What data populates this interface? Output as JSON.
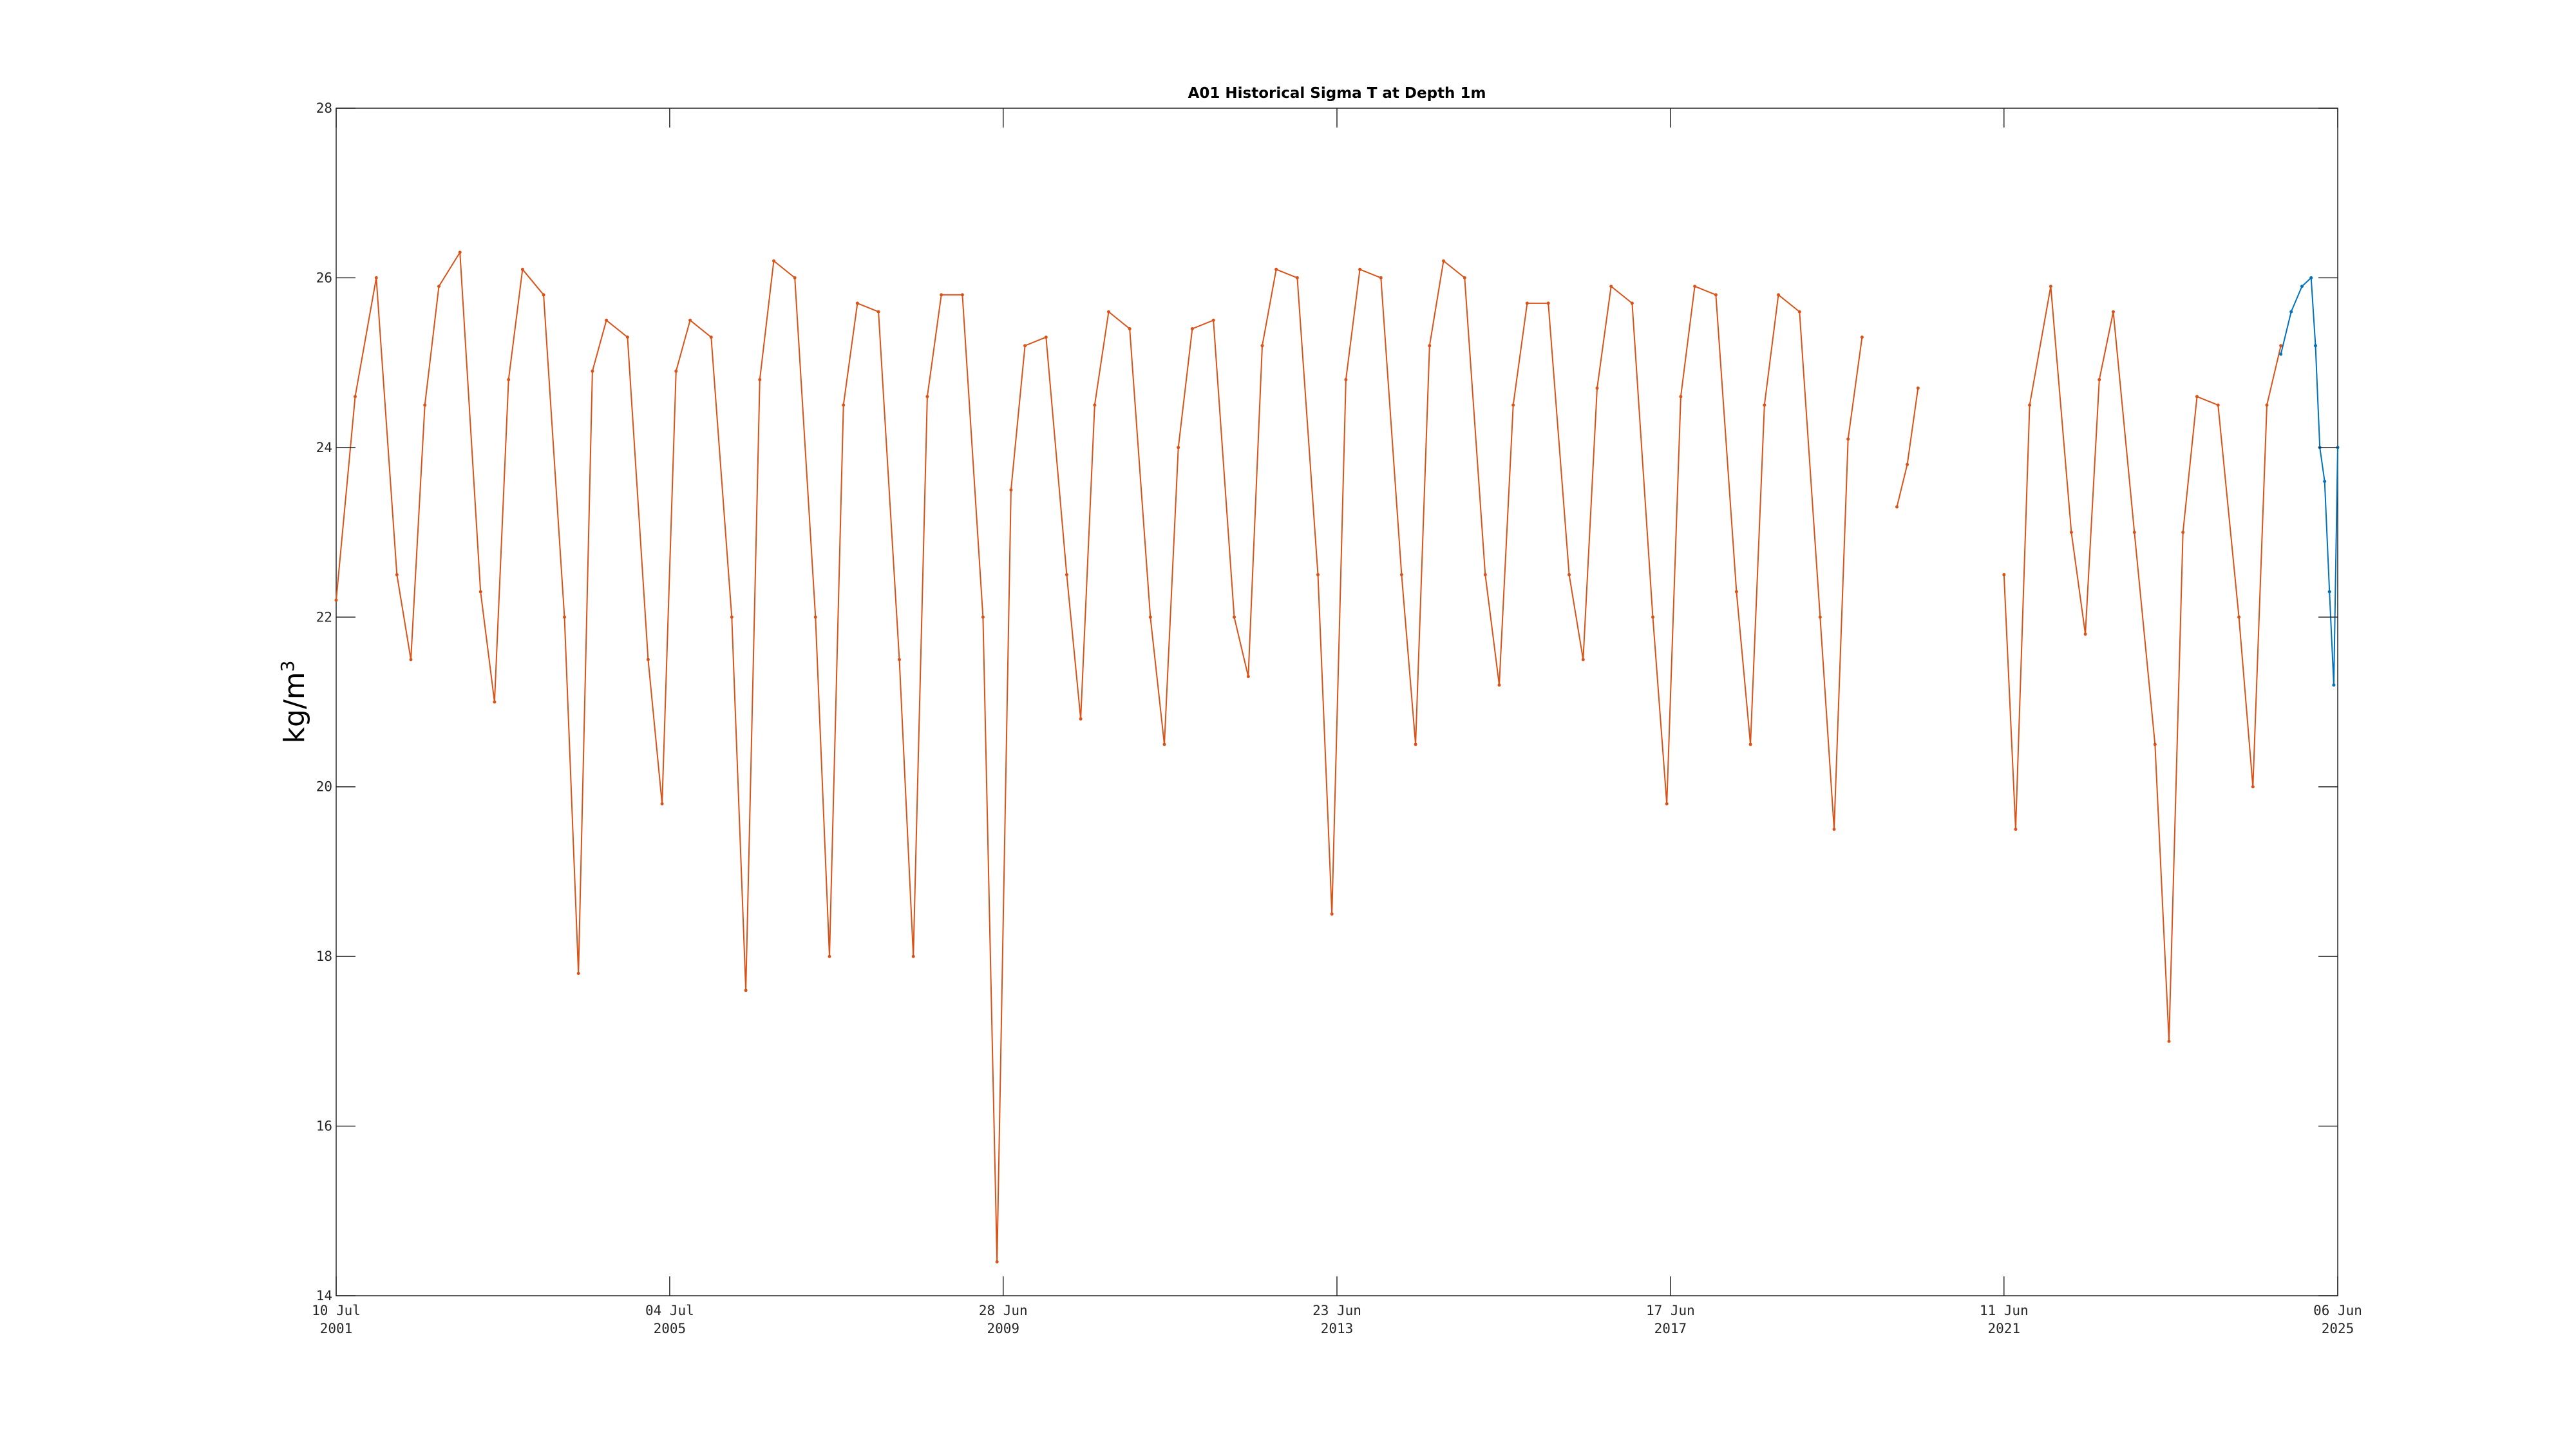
{
  "chart_data": {
    "type": "line",
    "title": "A01 Historical Sigma T at Depth 1m",
    "xlabel": "",
    "ylabel": "kg/m",
    "ylabel_superscript": "3",
    "xlim": [
      "2001-07-10",
      "2025-06-06"
    ],
    "ylim": [
      14,
      28
    ],
    "yticks": [
      14,
      16,
      18,
      20,
      22,
      24,
      26,
      28
    ],
    "xticks": [
      {
        "date": "2001-07-10",
        "line1": "10 Jul",
        "line2": "2001"
      },
      {
        "date": "2005-07-04",
        "line1": "04 Jul",
        "line2": "2005"
      },
      {
        "date": "2009-06-28",
        "line1": "28 Jun",
        "line2": "2009"
      },
      {
        "date": "2013-06-23",
        "line1": "23 Jun",
        "line2": "2013"
      },
      {
        "date": "2017-06-17",
        "line1": "17 Jun",
        "line2": "2017"
      },
      {
        "date": "2021-06-11",
        "line1": "11 Jun",
        "line2": "2021"
      },
      {
        "date": "2025-06-06",
        "line1": "06 Jun",
        "line2": "2025"
      }
    ],
    "grid": false,
    "colors": {
      "historical": "#d95319",
      "recent": "#0072bd",
      "axes": "#262626"
    },
    "series": [
      {
        "color": "#d95319",
        "segments": [
          {
            "x": [
              "2001-07-10",
              "2001-10-01",
              "2002-01-01",
              "2002-04-01",
              "2002-06-01",
              "2002-08-01",
              "2002-10-01",
              "2003-01-01",
              "2003-04-01",
              "2003-06-01",
              "2003-08-01",
              "2003-10-01",
              "2004-01-01",
              "2004-04-01",
              "2004-06-01",
              "2004-08-01",
              "2004-10-01",
              "2005-01-01",
              "2005-04-01",
              "2005-06-01",
              "2005-08-01",
              "2005-10-01",
              "2006-01-01",
              "2006-04-01",
              "2006-06-01",
              "2006-08-01",
              "2006-10-01",
              "2007-01-01",
              "2007-04-01",
              "2007-06-01",
              "2007-08-01",
              "2007-10-01",
              "2008-01-01",
              "2008-04-01",
              "2008-06-01",
              "2008-08-01",
              "2008-10-01",
              "2009-01-01",
              "2009-04-01",
              "2009-06-01",
              "2009-08-01",
              "2009-10-01",
              "2010-01-01",
              "2010-04-01",
              "2010-06-01",
              "2010-08-01",
              "2010-10-01",
              "2011-01-01",
              "2011-04-01",
              "2011-06-01",
              "2011-08-01",
              "2011-10-01",
              "2012-01-01",
              "2012-04-01",
              "2012-06-01",
              "2012-08-01",
              "2012-10-01",
              "2013-01-01",
              "2013-04-01",
              "2013-06-01",
              "2013-08-01",
              "2013-10-01",
              "2014-01-01",
              "2014-04-01",
              "2014-06-01",
              "2014-08-01",
              "2014-10-01",
              "2015-01-01",
              "2015-04-01",
              "2015-06-01",
              "2015-08-01",
              "2015-10-01",
              "2016-01-01",
              "2016-04-01",
              "2016-06-01",
              "2016-08-01",
              "2016-10-01",
              "2017-01-01",
              "2017-04-01",
              "2017-06-01",
              "2017-08-01",
              "2017-10-01",
              "2018-01-01",
              "2018-04-01",
              "2018-06-01",
              "2018-08-01",
              "2018-10-01",
              "2019-01-01",
              "2019-04-01",
              "2019-06-01",
              "2019-08-01",
              "2019-10-01"
            ],
            "y": [
              22.2,
              24.6,
              26.0,
              22.5,
              21.5,
              24.5,
              25.9,
              26.3,
              22.3,
              21.0,
              24.8,
              26.1,
              25.8,
              22.0,
              17.8,
              24.9,
              25.5,
              25.3,
              21.5,
              19.8,
              24.9,
              25.5,
              25.3,
              22.0,
              17.6,
              24.8,
              26.2,
              26.0,
              22.0,
              18.0,
              24.5,
              25.7,
              25.6,
              21.5,
              18.0,
              24.6,
              25.8,
              25.8,
              22.0,
              14.4,
              23.5,
              25.2,
              25.3,
              22.5,
              20.8,
              24.5,
              25.6,
              25.4,
              22.0,
              20.5,
              24.0,
              25.4,
              25.5,
              22.0,
              21.3,
              25.2,
              26.1,
              26.0,
              22.5,
              18.5,
              24.8,
              26.1,
              26.0,
              22.5,
              20.5,
              25.2,
              26.2,
              26.0,
              22.5,
              21.2,
              24.5,
              25.7,
              25.7,
              22.5,
              21.5,
              24.7,
              25.9,
              25.7,
              22.0,
              19.8,
              24.6,
              25.9,
              25.8,
              22.3,
              20.5,
              24.5,
              25.8,
              25.6,
              22.0,
              19.5,
              24.1,
              25.3
            ]
          },
          {
            "x": [
              "2020-03-01",
              "2020-04-15",
              "2020-06-01"
            ],
            "y": [
              23.3,
              23.8,
              24.7
            ]
          },
          {
            "x": [
              "2021-06-11",
              "2021-08-01",
              "2021-10-01",
              "2022-01-01",
              "2022-04-01",
              "2022-06-01",
              "2022-08-01",
              "2022-10-01",
              "2023-01-01",
              "2023-04-01",
              "2023-06-01",
              "2023-08-01",
              "2023-10-01",
              "2024-01-01",
              "2024-04-01",
              "2024-06-01",
              "2024-08-01",
              "2024-10-01"
            ],
            "y": [
              22.5,
              19.5,
              24.5,
              25.9,
              23.0,
              21.8,
              24.8,
              25.6,
              23.0,
              20.5,
              17.0,
              23.0,
              24.6,
              24.5,
              22.0,
              20.0,
              24.5,
              25.2
            ]
          }
        ]
      },
      {
        "color": "#0072bd",
        "segments": [
          {
            "x": [
              "2024-10-01",
              "2024-11-15",
              "2025-01-01",
              "2025-02-10",
              "2025-03-01",
              "2025-03-20",
              "2025-04-10",
              "2025-05-01",
              "2025-05-20",
              "2025-06-06"
            ],
            "y": [
              25.1,
              25.6,
              25.9,
              26.0,
              25.2,
              24.0,
              23.6,
              22.3,
              21.2,
              24.0
            ]
          }
        ]
      }
    ]
  }
}
